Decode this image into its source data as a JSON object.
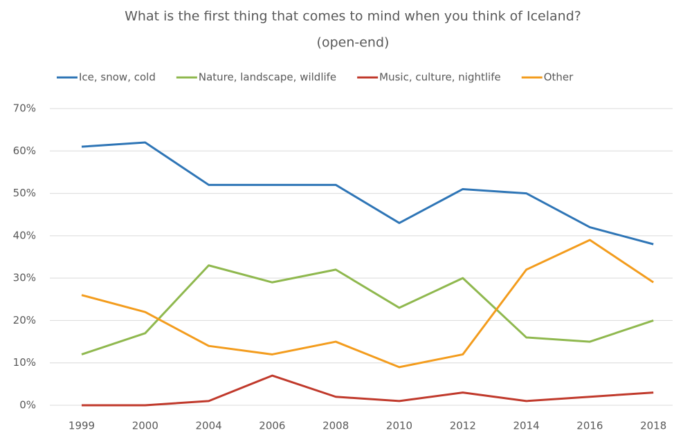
{
  "chart_data": {
    "type": "line",
    "title": "What is the first thing that comes to mind when you think of Iceland?",
    "subtitle": "(open-end)",
    "categories": [
      "1999",
      "2000",
      "2004",
      "2006",
      "2008",
      "2010",
      "2012",
      "2014",
      "2016",
      "2018"
    ],
    "series": [
      {
        "name": "Ice, snow, cold",
        "color": "#2e75b6",
        "values": [
          61,
          62,
          52,
          52,
          52,
          43,
          51,
          50,
          42,
          38
        ]
      },
      {
        "name": "Nature, landscape, wildlife",
        "color": "#8fb84e",
        "values": [
          12,
          17,
          33,
          29,
          32,
          23,
          30,
          16,
          15,
          20
        ]
      },
      {
        "name": "Music, culture, nightlife",
        "color": "#c0392b",
        "values": [
          0,
          0,
          1,
          7,
          2,
          1,
          3,
          1,
          2,
          3
        ]
      },
      {
        "name": "Other",
        "color": "#f39c1d",
        "values": [
          26,
          22,
          14,
          12,
          15,
          9,
          12,
          32,
          39,
          29
        ]
      }
    ],
    "ylim": [
      0,
      70
    ],
    "yticks": [
      {
        "value": 0,
        "label": "0%"
      },
      {
        "value": 10,
        "label": "10%"
      },
      {
        "value": 20,
        "label": "20%"
      },
      {
        "value": 30,
        "label": "30%"
      },
      {
        "value": 40,
        "label": "40%"
      },
      {
        "value": 50,
        "label": "50%"
      },
      {
        "value": 60,
        "label": "60%"
      },
      {
        "value": 70,
        "label": "70%"
      }
    ],
    "grid": true,
    "legend": "top"
  }
}
